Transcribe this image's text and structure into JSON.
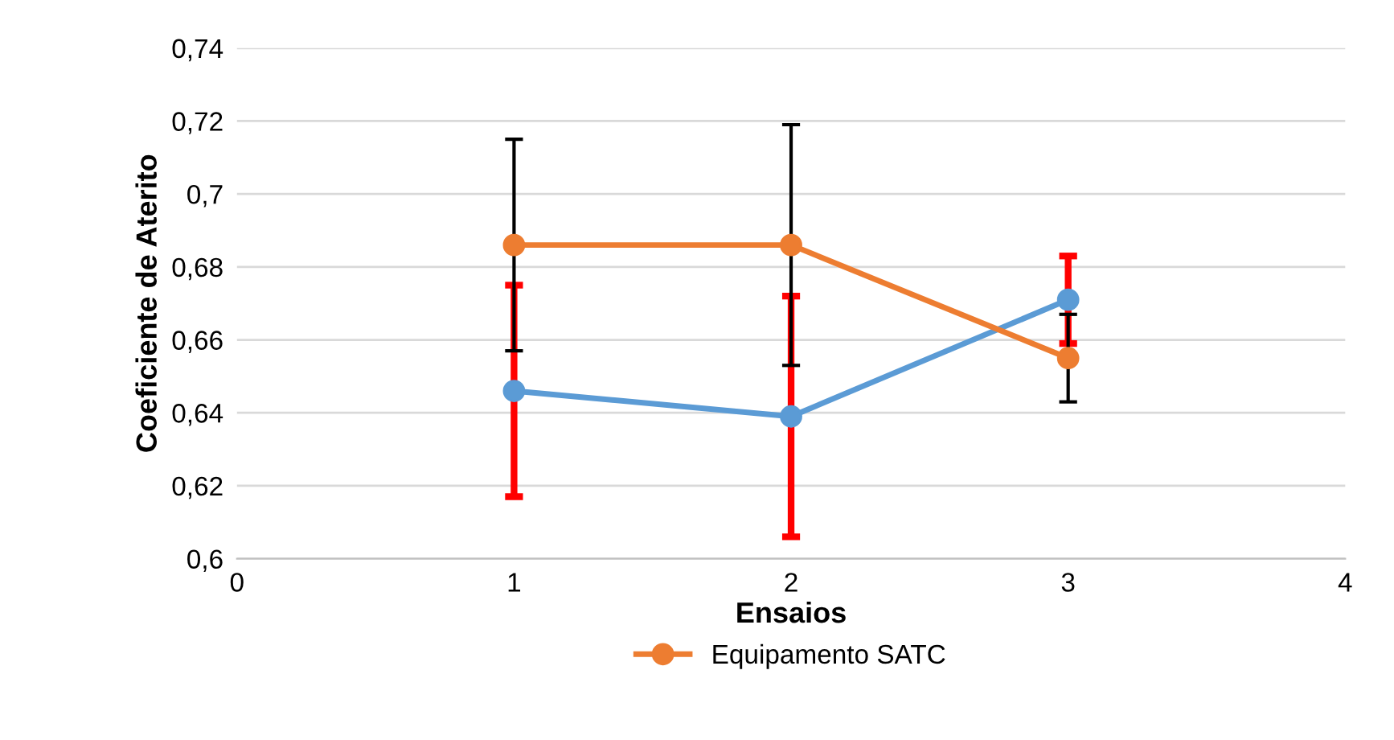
{
  "chart_data": {
    "type": "line",
    "xlabel": "Ensaios",
    "ylabel": "Coeficiente de Aterito",
    "x": [
      1,
      2,
      3
    ],
    "series": [
      {
        "color": "#5b9bd5",
        "values": [
          0.646,
          0.639,
          0.671
        ],
        "errors": [
          0.029,
          0.033,
          0.012
        ]
      },
      {
        "name": "Equipamento SATC",
        "color": "#ed7d31",
        "values": [
          0.686,
          0.686,
          0.655
        ],
        "errors": [
          0.029,
          0.033,
          0.012
        ]
      }
    ],
    "xlim": [
      0,
      4
    ],
    "xticks": [
      0,
      1,
      2,
      3,
      4
    ],
    "ylim": [
      0.6,
      0.74
    ],
    "yticks": [
      {
        "value": 0.6,
        "label": "0,6"
      },
      {
        "value": 0.62,
        "label": "0,62"
      },
      {
        "value": 0.64,
        "label": "0,64"
      },
      {
        "value": 0.66,
        "label": "0,66"
      },
      {
        "value": 0.68,
        "label": "0,68"
      },
      {
        "value": 0.7,
        "label": "0,7"
      },
      {
        "value": 0.72,
        "label": "0,72"
      },
      {
        "value": 0.74,
        "label": "0,74"
      }
    ],
    "grid": "y",
    "legend": "bottom",
    "marker": "circle",
    "line_style": "solid"
  }
}
